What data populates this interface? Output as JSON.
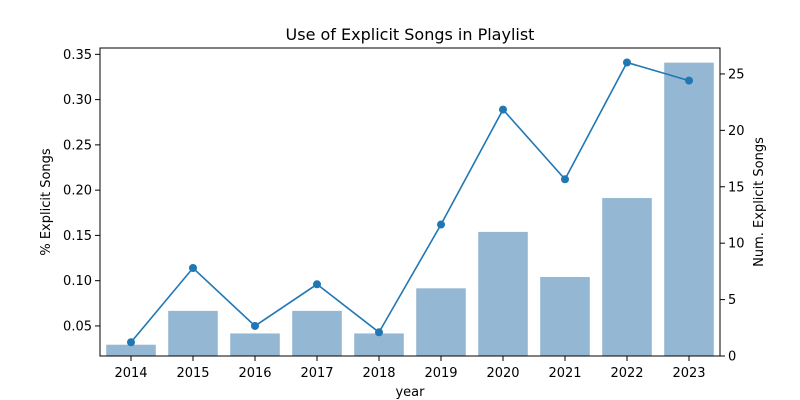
{
  "chart_data": {
    "type": "bar+line",
    "title": "Use of Explicit Songs in Playlist",
    "xlabel": "year",
    "ylabel_left": "% Explicit Songs",
    "ylabel_right": "Num. Explicit Songs",
    "categories": [
      "2014",
      "2015",
      "2016",
      "2017",
      "2018",
      "2019",
      "2020",
      "2021",
      "2022",
      "2023"
    ],
    "series": [
      {
        "type": "bar",
        "axis": "right",
        "color": "#94b8d4",
        "values": [
          1,
          4,
          2,
          4,
          2,
          6,
          11,
          7,
          14,
          26
        ]
      },
      {
        "type": "line",
        "axis": "left",
        "color": "#1f77b4",
        "values": [
          0.032,
          0.114,
          0.05,
          0.096,
          0.043,
          0.162,
          0.289,
          0.212,
          0.341,
          0.321
        ]
      }
    ],
    "ylim_left": [
      0.0168,
      0.357
    ],
    "ylim_right": [
      0,
      27.3
    ],
    "yticks_left": [
      "0.05",
      "0.10",
      "0.15",
      "0.20",
      "0.25",
      "0.30",
      "0.35"
    ],
    "yticks_right": [
      "0",
      "5",
      "10",
      "15",
      "20",
      "25"
    ],
    "grid": false
  }
}
